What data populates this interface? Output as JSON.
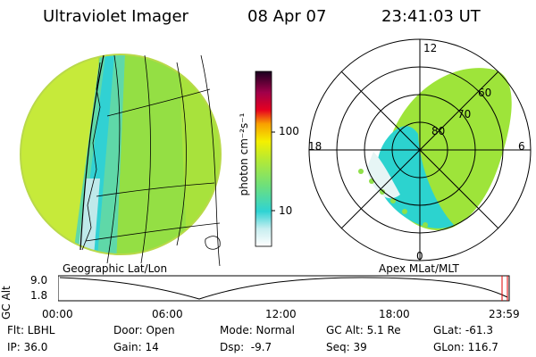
{
  "header": {
    "title": "Ultraviolet Imager",
    "date": "08 Apr 07",
    "time": "23:41:03 UT"
  },
  "left_image": {
    "caption": "Geographic Lat/Lon"
  },
  "right_image": {
    "caption": "Apex MLat/MLT",
    "mlt_labels": {
      "top": "12",
      "left": "18",
      "right": "6",
      "bottom": "0"
    },
    "lat_labels": [
      "60",
      "70",
      "80"
    ]
  },
  "colorbar": {
    "unit_label": "photon cm⁻²s⁻¹",
    "ticks": [
      "100",
      "10"
    ]
  },
  "altitude_panel": {
    "y_label": "GC Alt",
    "y_ticks": [
      "9.0",
      "1.8"
    ],
    "x_ticks": [
      "00:00",
      "06:00",
      "12:00",
      "18:00",
      "23:59"
    ]
  },
  "info": {
    "flt": "Flt: LBHL",
    "ip": "IP: 36.0",
    "door": "Door: Open",
    "gain": "Gain: 14",
    "mode": "Mode: Normal",
    "dsp": "Dsp:  -9.7",
    "gcalt": "GC Alt: 5.1 Re",
    "seq": "Seq: 39",
    "glat": "GLat: -61.3",
    "glon": "GLon: 116.7"
  },
  "colors": {
    "green": "#9be43c",
    "cyan": "#29d6d0",
    "yellow": "#e6ef2a",
    "white": "#eaf6f6"
  }
}
